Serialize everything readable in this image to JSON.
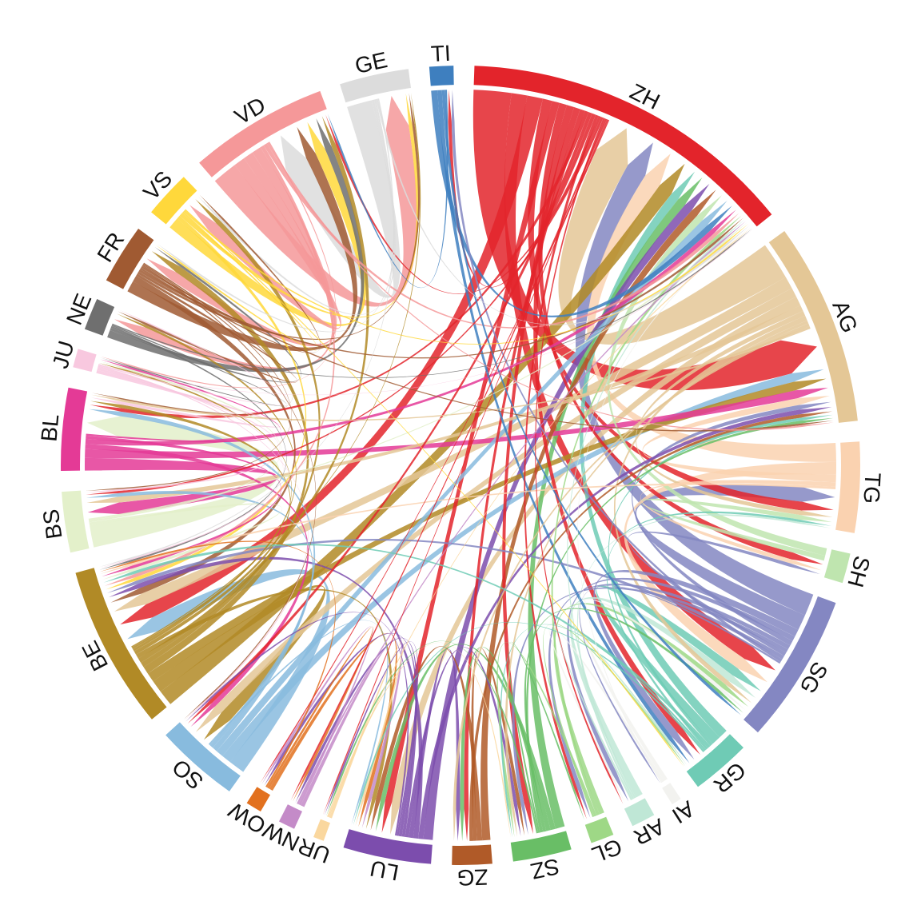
{
  "figure": {
    "background_color": "#FFFFFF",
    "title": "",
    "legend": "none"
  },
  "chart_data": {
    "type": "chord",
    "description": "Circular chord diagram of flows between the 26 Swiss cantons; directional ribbons with arrowheads point at the destination sector. Values are relative units estimated from ribbon widths.",
    "layout": {
      "start_angle_deg": 88,
      "direction": "clockwise",
      "sector_gap_deg": 3,
      "label_color": "#111111"
    },
    "sectors": [
      {
        "code": "ZH",
        "label": "ZH",
        "color": "#E3242B"
      },
      {
        "code": "AG",
        "label": "AG",
        "color": "#E4C796"
      },
      {
        "code": "TG",
        "label": "TG",
        "color": "#FAD2B0"
      },
      {
        "code": "SH",
        "label": "SH",
        "color": "#BFE5AF"
      },
      {
        "code": "SG",
        "label": "SG",
        "color": "#8487C2"
      },
      {
        "code": "GR",
        "label": "GR",
        "color": "#6FCBB5"
      },
      {
        "code": "AI",
        "label": "AI",
        "color": "#F2F2EF"
      },
      {
        "code": "AR",
        "label": "AR",
        "color": "#BFE7D6"
      },
      {
        "code": "GL",
        "label": "GL",
        "color": "#9ED886"
      },
      {
        "code": "SZ",
        "label": "SZ",
        "color": "#69BE66"
      },
      {
        "code": "ZG",
        "label": "ZG",
        "color": "#B05A28"
      },
      {
        "code": "LU",
        "label": "LU",
        "color": "#7C4DAD"
      },
      {
        "code": "UR",
        "label": "UR",
        "color": "#FAD79E"
      },
      {
        "code": "NW",
        "label": "NW",
        "color": "#C48BC8"
      },
      {
        "code": "OW",
        "label": "OW",
        "color": "#E2711F"
      },
      {
        "code": "SO",
        "label": "SO",
        "color": "#88BBDE"
      },
      {
        "code": "BE",
        "label": "BE",
        "color": "#B18A26"
      },
      {
        "code": "BS",
        "label": "BS",
        "color": "#E3F0CA"
      },
      {
        "code": "BL",
        "label": "BL",
        "color": "#E43A96"
      },
      {
        "code": "JU",
        "label": "JU",
        "color": "#F8C8DF"
      },
      {
        "code": "NE",
        "label": "NE",
        "color": "#6F6F6F"
      },
      {
        "code": "FR",
        "label": "FR",
        "color": "#A05A32"
      },
      {
        "code": "VS",
        "label": "VS",
        "color": "#FFD83B"
      },
      {
        "code": "VD",
        "label": "VD",
        "color": "#F59899"
      },
      {
        "code": "GE",
        "label": "GE",
        "color": "#DCDCDC"
      },
      {
        "code": "TI",
        "label": "TI",
        "color": "#3E7FBF"
      }
    ],
    "chords": [
      {
        "from": "ZH",
        "to": "AG",
        "value": 6.0
      },
      {
        "from": "ZH",
        "to": "SG",
        "value": 2.5
      },
      {
        "from": "ZH",
        "to": "BE",
        "value": 2.5
      },
      {
        "from": "ZH",
        "to": "TG",
        "value": 1.5
      },
      {
        "from": "ZH",
        "to": "LU",
        "value": 1.2
      },
      {
        "from": "ZH",
        "to": "SH",
        "value": 1.2
      },
      {
        "from": "ZH",
        "to": "GR",
        "value": 1.2
      },
      {
        "from": "ZH",
        "to": "SZ",
        "value": 1.0
      },
      {
        "from": "ZH",
        "to": "ZG",
        "value": 0.8
      },
      {
        "from": "ZH",
        "to": "VD",
        "value": 0.4
      },
      {
        "from": "ZH",
        "to": "BL",
        "value": 0.6
      },
      {
        "from": "ZH",
        "to": "SO",
        "value": 0.6
      },
      {
        "from": "ZH",
        "to": "TI",
        "value": 0.6
      },
      {
        "from": "ZH",
        "to": "GL",
        "value": 0.5
      },
      {
        "from": "ZH",
        "to": "BS",
        "value": 0.4
      },
      {
        "from": "ZH",
        "to": "AR",
        "value": 0.3
      },
      {
        "from": "ZH",
        "to": "NW",
        "value": 0.3
      },
      {
        "from": "ZH",
        "to": "UR",
        "value": 0.2
      },
      {
        "from": "ZH",
        "to": "OW",
        "value": 0.2
      },
      {
        "from": "AG",
        "to": "ZH",
        "value": 6.0
      },
      {
        "from": "AG",
        "to": "BE",
        "value": 2.0
      },
      {
        "from": "AG",
        "to": "SO",
        "value": 1.5
      },
      {
        "from": "AG",
        "to": "LU",
        "value": 1.5
      },
      {
        "from": "AG",
        "to": "BS",
        "value": 1.0
      },
      {
        "from": "AG",
        "to": "TG",
        "value": 0.8
      },
      {
        "from": "AG",
        "to": "SG",
        "value": 0.8
      },
      {
        "from": "AG",
        "to": "SZ",
        "value": 0.5
      },
      {
        "from": "AG",
        "to": "ZG",
        "value": 0.5
      },
      {
        "from": "AG",
        "to": "BL",
        "value": 0.4
      },
      {
        "from": "TG",
        "to": "ZH",
        "value": 3.0
      },
      {
        "from": "TG",
        "to": "SG",
        "value": 2.0
      },
      {
        "from": "TG",
        "to": "AG",
        "value": 1.2
      },
      {
        "from": "TG",
        "to": "SH",
        "value": 0.7
      },
      {
        "from": "TG",
        "to": "BE",
        "value": 0.4
      },
      {
        "from": "SH",
        "to": "ZH",
        "value": 1.2
      },
      {
        "from": "SH",
        "to": "TG",
        "value": 0.8
      },
      {
        "from": "SG",
        "to": "ZH",
        "value": 3.5
      },
      {
        "from": "SG",
        "to": "TG",
        "value": 2.5
      },
      {
        "from": "SG",
        "to": "GR",
        "value": 1.2
      },
      {
        "from": "SG",
        "to": "AR",
        "value": 0.8
      },
      {
        "from": "SG",
        "to": "AG",
        "value": 0.8
      },
      {
        "from": "SG",
        "to": "GL",
        "value": 0.7
      },
      {
        "from": "SG",
        "to": "SZ",
        "value": 0.6
      },
      {
        "from": "SG",
        "to": "SH",
        "value": 0.6
      },
      {
        "from": "SG",
        "to": "BE",
        "value": 0.6
      },
      {
        "from": "SG",
        "to": "TI",
        "value": 0.5
      },
      {
        "from": "SG",
        "to": "AI",
        "value": 0.3
      },
      {
        "from": "GR",
        "to": "ZH",
        "value": 1.5
      },
      {
        "from": "GR",
        "to": "SG",
        "value": 1.5
      },
      {
        "from": "GR",
        "to": "AG",
        "value": 0.5
      },
      {
        "from": "GR",
        "to": "BE",
        "value": 0.5
      },
      {
        "from": "GR",
        "to": "TG",
        "value": 0.4
      },
      {
        "from": "GR",
        "to": "SZ",
        "value": 0.3
      },
      {
        "from": "GR",
        "to": "LU",
        "value": 0.3
      },
      {
        "from": "AI",
        "to": "SG",
        "value": 0.6
      },
      {
        "from": "AI",
        "to": "AR",
        "value": 0.4
      },
      {
        "from": "AI",
        "to": "ZH",
        "value": 0.2
      },
      {
        "from": "AR",
        "to": "SG",
        "value": 1.2
      },
      {
        "from": "AR",
        "to": "ZH",
        "value": 0.3
      },
      {
        "from": "AR",
        "to": "TG",
        "value": 0.3
      },
      {
        "from": "AR",
        "to": "GR",
        "value": 0.3
      },
      {
        "from": "GL",
        "to": "SG",
        "value": 0.8
      },
      {
        "from": "GL",
        "to": "ZH",
        "value": 0.5
      },
      {
        "from": "GL",
        "to": "SZ",
        "value": 0.4
      },
      {
        "from": "GL",
        "to": "GR",
        "value": 0.3
      },
      {
        "from": "SZ",
        "to": "ZH",
        "value": 1.5
      },
      {
        "from": "SZ",
        "to": "LU",
        "value": 0.8
      },
      {
        "from": "SZ",
        "to": "ZG",
        "value": 0.7
      },
      {
        "from": "SZ",
        "to": "SG",
        "value": 0.5
      },
      {
        "from": "SZ",
        "to": "AG",
        "value": 0.5
      },
      {
        "from": "SZ",
        "to": "GL",
        "value": 0.3
      },
      {
        "from": "SZ",
        "to": "UR",
        "value": 0.3
      },
      {
        "from": "ZG",
        "to": "ZH",
        "value": 1.3
      },
      {
        "from": "ZG",
        "to": "LU",
        "value": 0.8
      },
      {
        "from": "ZG",
        "to": "SZ",
        "value": 0.6
      },
      {
        "from": "ZG",
        "to": "AG",
        "value": 0.6
      },
      {
        "from": "LU",
        "to": "ZH",
        "value": 1.5
      },
      {
        "from": "LU",
        "to": "AG",
        "value": 0.8
      },
      {
        "from": "LU",
        "to": "BE",
        "value": 0.8
      },
      {
        "from": "LU",
        "to": "ZG",
        "value": 0.7
      },
      {
        "from": "LU",
        "to": "SZ",
        "value": 0.6
      },
      {
        "from": "LU",
        "to": "OW",
        "value": 0.5
      },
      {
        "from": "LU",
        "to": "NW",
        "value": 0.5
      },
      {
        "from": "LU",
        "to": "UR",
        "value": 0.3
      },
      {
        "from": "LU",
        "to": "SO",
        "value": 0.3
      },
      {
        "from": "UR",
        "to": "LU",
        "value": 0.4
      },
      {
        "from": "UR",
        "to": "ZH",
        "value": 0.2
      },
      {
        "from": "UR",
        "to": "SZ",
        "value": 0.2
      },
      {
        "from": "NW",
        "to": "LU",
        "value": 0.6
      },
      {
        "from": "NW",
        "to": "OW",
        "value": 0.4
      },
      {
        "from": "NW",
        "to": "ZH",
        "value": 0.3
      },
      {
        "from": "OW",
        "to": "LU",
        "value": 0.6
      },
      {
        "from": "OW",
        "to": "NW",
        "value": 0.4
      },
      {
        "from": "OW",
        "to": "BE",
        "value": 0.3
      },
      {
        "from": "SO",
        "to": "BE",
        "value": 2.6
      },
      {
        "from": "SO",
        "to": "AG",
        "value": 1.5
      },
      {
        "from": "SO",
        "to": "ZH",
        "value": 1.2
      },
      {
        "from": "SO",
        "to": "BL",
        "value": 0.8
      },
      {
        "from": "SO",
        "to": "BS",
        "value": 0.6
      },
      {
        "from": "SO",
        "to": "LU",
        "value": 0.3
      },
      {
        "from": "BE",
        "to": "ZH",
        "value": 2.5
      },
      {
        "from": "BE",
        "to": "SO",
        "value": 2.0
      },
      {
        "from": "BE",
        "to": "AG",
        "value": 1.5
      },
      {
        "from": "BE",
        "to": "FR",
        "value": 1.2
      },
      {
        "from": "BE",
        "to": "VS",
        "value": 0.8
      },
      {
        "from": "BE",
        "to": "VD",
        "value": 0.8
      },
      {
        "from": "BE",
        "to": "LU",
        "value": 0.7
      },
      {
        "from": "BE",
        "to": "BL",
        "value": 0.6
      },
      {
        "from": "BE",
        "to": "NE",
        "value": 0.4
      },
      {
        "from": "BE",
        "to": "JU",
        "value": 0.3
      },
      {
        "from": "BE",
        "to": "GE",
        "value": 0.2
      },
      {
        "from": "BS",
        "to": "BL",
        "value": 3.5
      },
      {
        "from": "BS",
        "to": "BE",
        "value": 0.5
      },
      {
        "from": "BS",
        "to": "JU",
        "value": 0.3
      },
      {
        "from": "BS",
        "to": "ZH",
        "value": 0.3
      },
      {
        "from": "BL",
        "to": "BS",
        "value": 2.0
      },
      {
        "from": "BL",
        "to": "AG",
        "value": 1.4
      },
      {
        "from": "BL",
        "to": "SO",
        "value": 0.8
      },
      {
        "from": "BL",
        "to": "ZH",
        "value": 0.8
      },
      {
        "from": "BL",
        "to": "BE",
        "value": 0.5
      },
      {
        "from": "BL",
        "to": "JU",
        "value": 0.3
      },
      {
        "from": "JU",
        "to": "BL",
        "value": 0.5
      },
      {
        "from": "JU",
        "to": "BS",
        "value": 0.3
      },
      {
        "from": "JU",
        "to": "BE",
        "value": 0.2
      },
      {
        "from": "JU",
        "to": "SO",
        "value": 0.2
      },
      {
        "from": "JU",
        "to": "NE",
        "value": 0.2
      },
      {
        "from": "JU",
        "to": "ZH",
        "value": 0.1
      },
      {
        "from": "NE",
        "to": "VD",
        "value": 1.2
      },
      {
        "from": "NE",
        "to": "FR",
        "value": 0.4
      },
      {
        "from": "NE",
        "to": "BE",
        "value": 0.3
      },
      {
        "from": "NE",
        "to": "JU",
        "value": 0.2
      },
      {
        "from": "NE",
        "to": "ZH",
        "value": 0.2
      },
      {
        "from": "FR",
        "to": "VD",
        "value": 1.8
      },
      {
        "from": "FR",
        "to": "BE",
        "value": 1.0
      },
      {
        "from": "FR",
        "to": "NE",
        "value": 0.4
      },
      {
        "from": "FR",
        "to": "GE",
        "value": 0.4
      },
      {
        "from": "FR",
        "to": "ZH",
        "value": 0.4
      },
      {
        "from": "FR",
        "to": "VS",
        "value": 0.3
      },
      {
        "from": "FR",
        "to": "AG",
        "value": 0.3
      },
      {
        "from": "FR",
        "to": "SO",
        "value": 0.2
      },
      {
        "from": "FR",
        "to": "BS",
        "value": 0.2
      },
      {
        "from": "FR",
        "to": "BL",
        "value": 0.2
      },
      {
        "from": "VS",
        "to": "VD",
        "value": 1.8
      },
      {
        "from": "VS",
        "to": "BE",
        "value": 0.6
      },
      {
        "from": "VS",
        "to": "GE",
        "value": 0.6
      },
      {
        "from": "VS",
        "to": "FR",
        "value": 0.3
      },
      {
        "from": "VS",
        "to": "ZH",
        "value": 0.3
      },
      {
        "from": "VS",
        "to": "GR",
        "value": 0.2
      },
      {
        "from": "VD",
        "to": "GE",
        "value": 4.0
      },
      {
        "from": "VD",
        "to": "VS",
        "value": 1.8
      },
      {
        "from": "VD",
        "to": "FR",
        "value": 1.6
      },
      {
        "from": "VD",
        "to": "NE",
        "value": 1.5
      },
      {
        "from": "VD",
        "to": "BE",
        "value": 0.6
      },
      {
        "from": "VD",
        "to": "ZH",
        "value": 0.6
      },
      {
        "from": "VD",
        "to": "AG",
        "value": 0.3
      },
      {
        "from": "VD",
        "to": "JU",
        "value": 0.2
      },
      {
        "from": "GE",
        "to": "VD",
        "value": 4.0
      },
      {
        "from": "GE",
        "to": "VS",
        "value": 0.4
      },
      {
        "from": "GE",
        "to": "FR",
        "value": 0.3
      },
      {
        "from": "GE",
        "to": "ZH",
        "value": 0.3
      },
      {
        "from": "GE",
        "to": "BE",
        "value": 0.2
      },
      {
        "from": "TI",
        "to": "ZH",
        "value": 1.0
      },
      {
        "from": "TI",
        "to": "GR",
        "value": 0.7
      },
      {
        "from": "TI",
        "to": "SG",
        "value": 0.5
      },
      {
        "from": "TI",
        "to": "VD",
        "value": 0.3
      }
    ]
  }
}
